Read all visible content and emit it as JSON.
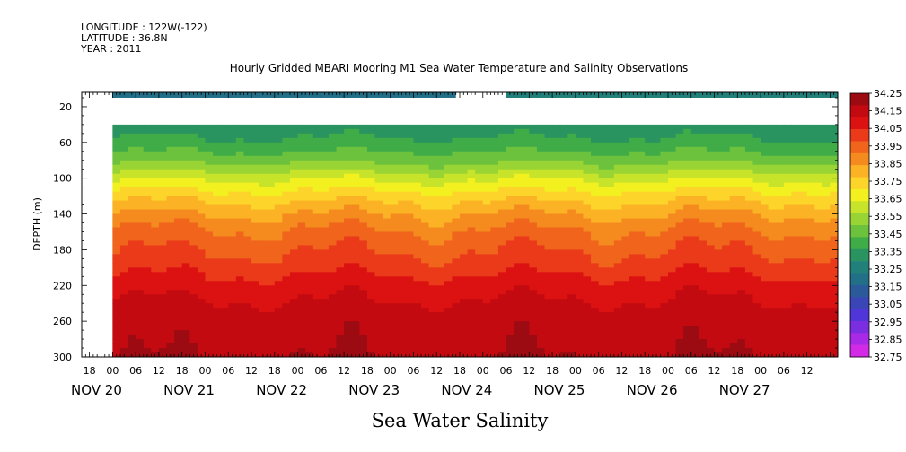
{
  "header": {
    "longitude": "LONGITUDE : 122W(-122)",
    "latitude": "LATITUDE : 36.8N",
    "year": "YEAR : 2011"
  },
  "chart_data": {
    "type": "heatmap",
    "title": "Hourly Gridded MBARI Mooring M1 Sea Water Temperature and Salinity Observations",
    "caption": "Sea Water Salinity",
    "ylabel": "DEPTH (m)",
    "ylim": [
      300,
      4
    ],
    "y_ticks": [
      20,
      60,
      100,
      140,
      180,
      220,
      260,
      300
    ],
    "x_range_hours": [
      -8,
      188
    ],
    "hour_tick_labels": [
      {
        "h": -6,
        "t": "18"
      },
      {
        "h": 0,
        "t": "00"
      },
      {
        "h": 6,
        "t": "06"
      },
      {
        "h": 12,
        "t": "12"
      },
      {
        "h": 18,
        "t": "18"
      },
      {
        "h": 24,
        "t": "00"
      },
      {
        "h": 30,
        "t": "06"
      },
      {
        "h": 36,
        "t": "12"
      },
      {
        "h": 42,
        "t": "18"
      },
      {
        "h": 48,
        "t": "00"
      },
      {
        "h": 54,
        "t": "06"
      },
      {
        "h": 60,
        "t": "12"
      },
      {
        "h": 66,
        "t": "18"
      },
      {
        "h": 72,
        "t": "00"
      },
      {
        "h": 78,
        "t": "06"
      },
      {
        "h": 84,
        "t": "12"
      },
      {
        "h": 90,
        "t": "18"
      },
      {
        "h": 96,
        "t": "00"
      },
      {
        "h": 102,
        "t": "06"
      },
      {
        "h": 108,
        "t": "12"
      },
      {
        "h": 114,
        "t": "18"
      },
      {
        "h": 120,
        "t": "00"
      },
      {
        "h": 126,
        "t": "06"
      },
      {
        "h": 132,
        "t": "12"
      },
      {
        "h": 138,
        "t": "18"
      },
      {
        "h": 144,
        "t": "00"
      },
      {
        "h": 150,
        "t": "06"
      },
      {
        "h": 156,
        "t": "12"
      },
      {
        "h": 162,
        "t": "18"
      },
      {
        "h": 168,
        "t": "00"
      },
      {
        "h": 174,
        "t": "06"
      },
      {
        "h": 180,
        "t": "12"
      }
    ],
    "day_labels": [
      {
        "h": -8,
        "t": "NOV 20"
      },
      {
        "h": 16,
        "t": "NOV 21"
      },
      {
        "h": 40,
        "t": "NOV 22"
      },
      {
        "h": 64,
        "t": "NOV 23"
      },
      {
        "h": 88,
        "t": "NOV 24"
      },
      {
        "h": 112,
        "t": "NOV 25"
      },
      {
        "h": 136,
        "t": "NOV 26"
      },
      {
        "h": 160,
        "t": "NOV 27"
      }
    ],
    "data_start_hour": 0,
    "surface_segments": [
      {
        "start": 0,
        "end": 89,
        "depth_top": 4,
        "depth_bottom": 10,
        "value": 33.22
      },
      {
        "start": 102,
        "end": 188,
        "depth_top": 4,
        "depth_bottom": 10,
        "value": 33.28
      }
    ],
    "deep_layer_top_depth": 40,
    "depth_profile": [
      {
        "depth": 40,
        "value": 33.32
      },
      {
        "depth": 60,
        "value": 33.38
      },
      {
        "depth": 80,
        "value": 33.48
      },
      {
        "depth": 100,
        "value": 33.62
      },
      {
        "depth": 120,
        "value": 33.74
      },
      {
        "depth": 140,
        "value": 33.84
      },
      {
        "depth": 160,
        "value": 33.92
      },
      {
        "depth": 180,
        "value": 33.97
      },
      {
        "depth": 200,
        "value": 34.02
      },
      {
        "depth": 220,
        "value": 34.08
      },
      {
        "depth": 240,
        "value": 34.12
      },
      {
        "depth": 260,
        "value": 34.16
      },
      {
        "depth": 280,
        "value": 34.17
      },
      {
        "depth": 300,
        "value": 34.18
      }
    ],
    "colorbar": {
      "levels": [
        "34.25",
        "34.15",
        "34.05",
        "33.95",
        "33.85",
        "33.75",
        "33.65",
        "33.55",
        "33.45",
        "33.35",
        "33.25",
        "33.15",
        "33.05",
        "32.95",
        "32.85",
        "32.75"
      ],
      "colors": [
        "#9c0a12",
        "#c20a10",
        "#dc1212",
        "#ea3a1a",
        "#f0641c",
        "#f58a1e",
        "#fbb224",
        "#fcd42a",
        "#f3f020",
        "#c8e42a",
        "#98d434",
        "#6cc23c",
        "#40ac48",
        "#2a9460",
        "#22807a",
        "#227088",
        "#2a5a9a",
        "#3a46b8",
        "#5036d8",
        "#7a2ee0",
        "#a82ae6",
        "#d22ae6"
      ]
    }
  }
}
